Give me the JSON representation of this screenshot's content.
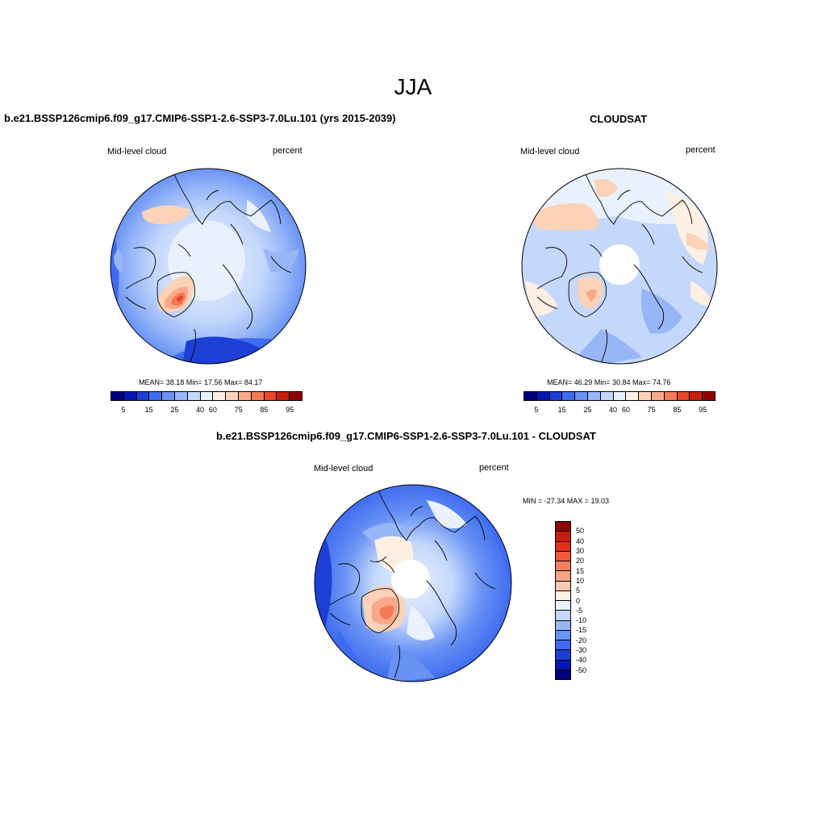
{
  "season": "JJA",
  "panels": {
    "model": {
      "title": "b.e21.BSSP126cmip6.f09_g17.CMIP6-SSP1-2.6-SSP3-7.0Lu.101 (yrs 2015-2039)",
      "left_label": "Mid-level cloud",
      "right_label": "percent",
      "stats": "MEAN=  38.18  Min=  17.56  Max=  84.17"
    },
    "obs": {
      "title": "CLOUDSAT",
      "left_label": "Mid-level cloud",
      "right_label": "percent",
      "stats": "MEAN=  46.29  Min=  30.84  Max=  74.76"
    },
    "diff": {
      "title": "b.e21.BSSP126cmip6.f09_g17.CMIP6-SSP1-2.6-SSP3-7.0Lu.101 - CLOUDSAT",
      "left_label": "Mid-level cloud",
      "right_label": "percent",
      "stats": "MIN = -27.34 MAX =  19.03"
    }
  },
  "colorbar_abs": {
    "tick_labels": [
      "5",
      "15",
      "25",
      "40",
      "60",
      "75",
      "85",
      "95"
    ],
    "colors": [
      "#00007f",
      "#0019b3",
      "#1c3fd6",
      "#3e6cf0",
      "#6892f4",
      "#97b6f8",
      "#c4d8fb",
      "#e8f1fd",
      "#fdf0e3",
      "#fcd2b8",
      "#f9a98a",
      "#f47a57",
      "#e9462a",
      "#c81d0d",
      "#8e0000"
    ]
  },
  "colorbar_diff": {
    "tick_labels": [
      "50",
      "40",
      "30",
      "20",
      "15",
      "10",
      "5",
      "0",
      "-5",
      "-10",
      "-15",
      "-20",
      "-30",
      "-40",
      "-50"
    ],
    "colors": [
      "#8e0000",
      "#c81d0d",
      "#e0301c",
      "#ef5a3a",
      "#f4805f",
      "#f8a585",
      "#fbc9ac",
      "#fdf0e3",
      "#e8f1fd",
      "#c4d8fb",
      "#97b6f8",
      "#6892f4",
      "#3e6cf0",
      "#1c3fd6",
      "#0019b3",
      "#00007f"
    ]
  }
}
